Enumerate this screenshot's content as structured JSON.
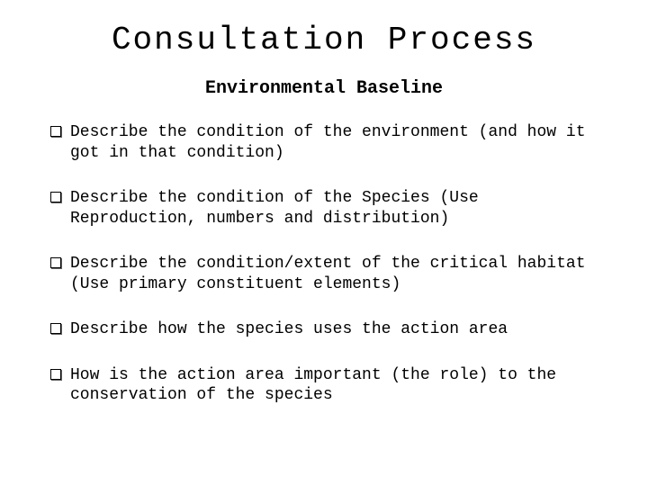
{
  "title": "Consultation Process",
  "subtitle": "Environmental Baseline",
  "bullets": [
    "Describe the condition of the environment (and how it got in that condition)",
    "Describe the condition of the Species (Use Reproduction, numbers and distribution)",
    "Describe the condition/extent of the critical habitat (Use primary constituent elements)",
    "Describe how the species uses the action area",
    "How is the action area important (the role) to the conservation of the species"
  ],
  "colors": {
    "background": "#ffffff",
    "text": "#000000"
  },
  "typography": {
    "font_family": "Courier New, monospace",
    "title_fontsize": 36,
    "subtitle_fontsize": 20,
    "body_fontsize": 18
  }
}
